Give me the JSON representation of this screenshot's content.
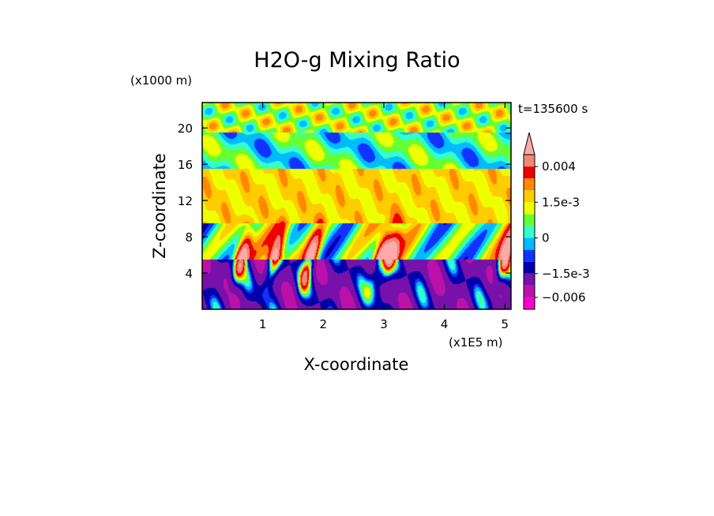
{
  "chart_data": {
    "type": "heatmap",
    "title": "H2O-g Mixing Ratio",
    "timestamp": "t=135600 s",
    "xlabel": "X-coordinate",
    "ylabel": "Z-coordinate",
    "x_scale_label": "(x1E5 m)",
    "y_scale_label": "(x1000 m)",
    "xlim": [
      0,
      5.1
    ],
    "ylim": [
      0,
      22.8
    ],
    "x_ticks": [
      1,
      2,
      3,
      4,
      5
    ],
    "x_tick_labels": [
      "1",
      "2",
      "3",
      "4",
      "5"
    ],
    "y_ticks": [
      4,
      8,
      12,
      16,
      20
    ],
    "y_tick_labels": [
      "4",
      "8",
      "12",
      "16",
      "20"
    ],
    "colorbar": {
      "levels": [
        -0.009,
        -0.006,
        -0.003,
        -0.0015,
        -0.001,
        -0.0005,
        0,
        0.0005,
        0.001,
        0.0015,
        0.002,
        0.003,
        0.004
      ],
      "colors": [
        "#ff00cc",
        "#bb11aa",
        "#7711aa",
        "#0000aa",
        "#1133ff",
        "#00bbff",
        "#33ffcc",
        "#66ff33",
        "#eeff00",
        "#ffcc00",
        "#ff8800",
        "#ee0000",
        "#ee8877",
        "#ffaaaa"
      ],
      "labels": [
        {
          "value": 0.004,
          "text": "0.004"
        },
        {
          "value": 0.0015,
          "text": "1.5e-3"
        },
        {
          "value": 0,
          "text": "0"
        },
        {
          "value": -0.0015,
          "text": "−1.5e-3"
        },
        {
          "value": -0.006,
          "text": "−0.006"
        }
      ],
      "extend": "max"
    },
    "grid": false,
    "field_description": "2D contour field over X (0-5.1e5 m) and Z (0-22.8 km)"
  }
}
